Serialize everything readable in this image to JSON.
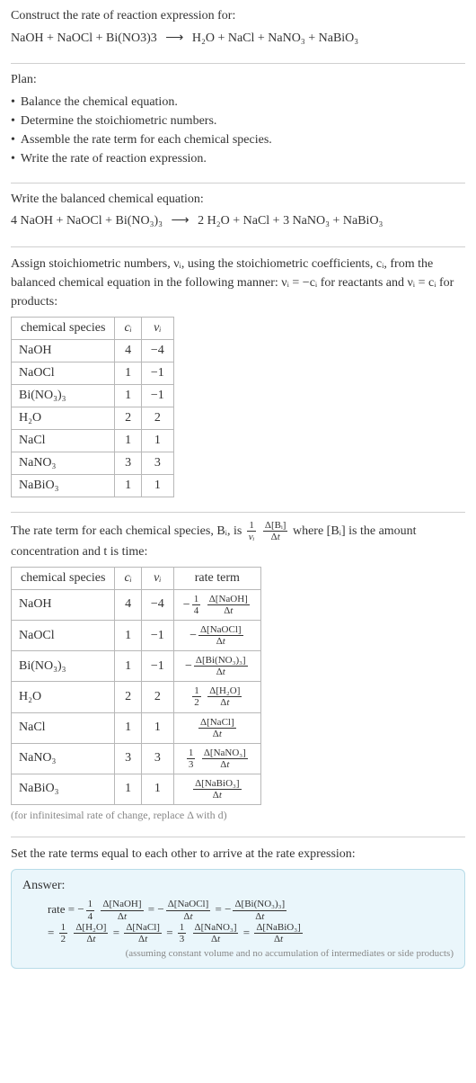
{
  "intro": {
    "title": "Construct the rate of reaction expression for:",
    "equation_lhs": "NaOH + NaOCl + Bi(NO3)3",
    "equation_rhs": "H₂O + NaCl + NaNO₃ + NaBiO₃"
  },
  "plan": {
    "title": "Plan:",
    "items": [
      "Balance the chemical equation.",
      "Determine the stoichiometric numbers.",
      "Assemble the rate term for each chemical species.",
      "Write the rate of reaction expression."
    ]
  },
  "balanced": {
    "title": "Write the balanced chemical equation:",
    "lhs": "4 NaOH + NaOCl + Bi(NO₃)₃",
    "rhs": "2 H₂O + NaCl + 3 NaNO₃ + NaBiO₃"
  },
  "assign": {
    "para": "Assign stoichiometric numbers, νᵢ, using the stoichiometric coefficients, cᵢ, from the balanced chemical equation in the following manner: νᵢ = −cᵢ for reactants and νᵢ = cᵢ for products:",
    "headers": [
      "chemical species",
      "cᵢ",
      "νᵢ"
    ],
    "rows": [
      {
        "species": "NaOH",
        "c": "4",
        "nu": "−4"
      },
      {
        "species": "NaOCl",
        "c": "1",
        "nu": "−1"
      },
      {
        "species": "Bi(NO₃)₃",
        "c": "1",
        "nu": "−1"
      },
      {
        "species": "H₂O",
        "c": "2",
        "nu": "2"
      },
      {
        "species": "NaCl",
        "c": "1",
        "nu": "1"
      },
      {
        "species": "NaNO₃",
        "c": "3",
        "nu": "3"
      },
      {
        "species": "NaBiO₃",
        "c": "1",
        "nu": "1"
      }
    ]
  },
  "rateterm": {
    "para_pre": "The rate term for each chemical species, Bᵢ, is ",
    "para_post": " where [Bᵢ] is the amount concentration and t is time:",
    "headers": [
      "chemical species",
      "cᵢ",
      "νᵢ",
      "rate term"
    ],
    "rows": [
      {
        "species": "NaOH",
        "c": "4",
        "nu": "−4",
        "coef_num": "1",
        "coef_den": "4",
        "dnum": "Δ[NaOH]",
        "dden": "Δt",
        "neg": true
      },
      {
        "species": "NaOCl",
        "c": "1",
        "nu": "−1",
        "coef_num": "",
        "coef_den": "",
        "dnum": "Δ[NaOCl]",
        "dden": "Δt",
        "neg": true
      },
      {
        "species": "Bi(NO₃)₃",
        "c": "1",
        "nu": "−1",
        "coef_num": "",
        "coef_den": "",
        "dnum": "Δ[Bi(NO₃)₃]",
        "dden": "Δt",
        "neg": true
      },
      {
        "species": "H₂O",
        "c": "2",
        "nu": "2",
        "coef_num": "1",
        "coef_den": "2",
        "dnum": "Δ[H₂O]",
        "dden": "Δt",
        "neg": false
      },
      {
        "species": "NaCl",
        "c": "1",
        "nu": "1",
        "coef_num": "",
        "coef_den": "",
        "dnum": "Δ[NaCl]",
        "dden": "Δt",
        "neg": false
      },
      {
        "species": "NaNO₃",
        "c": "3",
        "nu": "3",
        "coef_num": "1",
        "coef_den": "3",
        "dnum": "Δ[NaNO₃]",
        "dden": "Δt",
        "neg": false
      },
      {
        "species": "NaBiO₃",
        "c": "1",
        "nu": "1",
        "coef_num": "",
        "coef_den": "",
        "dnum": "Δ[NaBiO₃]",
        "dden": "Δt",
        "neg": false
      }
    ],
    "note": "(for infinitesimal rate of change, replace Δ with d)"
  },
  "final": {
    "para": "Set the rate terms equal to each other to arrive at the rate expression:",
    "answer_label": "Answer:",
    "answer_line1_prefix": "rate = ",
    "terms": [
      {
        "neg": true,
        "coef_num": "1",
        "coef_den": "4",
        "dnum": "Δ[NaOH]",
        "dden": "Δt"
      },
      {
        "neg": true,
        "coef_num": "",
        "coef_den": "",
        "dnum": "Δ[NaOCl]",
        "dden": "Δt"
      },
      {
        "neg": true,
        "coef_num": "",
        "coef_den": "",
        "dnum": "Δ[Bi(NO₃)₃]",
        "dden": "Δt"
      },
      {
        "neg": false,
        "coef_num": "1",
        "coef_den": "2",
        "dnum": "Δ[H₂O]",
        "dden": "Δt"
      },
      {
        "neg": false,
        "coef_num": "",
        "coef_den": "",
        "dnum": "Δ[NaCl]",
        "dden": "Δt"
      },
      {
        "neg": false,
        "coef_num": "1",
        "coef_den": "3",
        "dnum": "Δ[NaNO₃]",
        "dden": "Δt"
      },
      {
        "neg": false,
        "coef_num": "",
        "coef_den": "",
        "dnum": "Δ[NaBiO₃]",
        "dden": "Δt"
      }
    ],
    "answer_note": "(assuming constant volume and no accumulation of intermediates or side products)"
  },
  "colors": {
    "divider": "#d0d0d0",
    "table_border": "#b8b8b8",
    "note": "#888888",
    "answer_bg": "#eaf6fb",
    "answer_border": "#b8dce8"
  }
}
